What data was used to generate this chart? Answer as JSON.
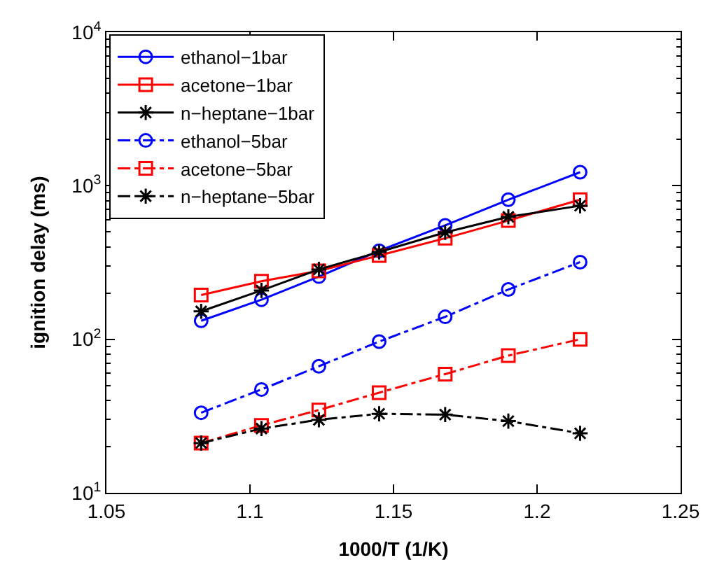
{
  "chart_data": {
    "type": "line",
    "xlabel": "1000/T (1/K)",
    "ylabel": "ignition delay (ms)",
    "x": [
      1.083,
      1.104,
      1.124,
      1.145,
      1.168,
      1.19,
      1.215
    ],
    "series": [
      {
        "name": "ethanol−1bar",
        "color": "#0000ff",
        "marker": "circle",
        "line_style": "solid",
        "values": [
          132,
          181,
          256,
          377,
          552,
          811,
          1225
        ]
      },
      {
        "name": "acetone−1bar",
        "color": "#ff0000",
        "marker": "square",
        "line_style": "solid",
        "values": [
          194,
          239,
          279,
          351,
          455,
          593,
          811
        ]
      },
      {
        "name": "n−heptane−1bar",
        "color": "#000000",
        "marker": "cross",
        "line_style": "solid",
        "values": [
          152,
          208,
          285,
          370,
          497,
          627,
          741
        ]
      },
      {
        "name": "ethanol−5bar",
        "color": "#0000ff",
        "marker": "circle",
        "line_style": "dashdot",
        "values": [
          33.2,
          47.1,
          66.7,
          96.6,
          140,
          211,
          318
        ]
      },
      {
        "name": "acetone−5bar",
        "color": "#ff0000",
        "marker": "square",
        "line_style": "dashdot",
        "values": [
          21.1,
          27.5,
          34.6,
          44.9,
          59.3,
          78.3,
          100
        ]
      },
      {
        "name": "n−heptane−5bar",
        "color": "#000000",
        "marker": "cross",
        "line_style": "dashdot",
        "values": [
          21.1,
          26.2,
          29.9,
          32.7,
          32.3,
          29.3,
          24.4
        ]
      }
    ],
    "log": "y",
    "legend": "top left",
    "xlim": [
      1.05,
      1.25
    ],
    "xticks": [
      1.05,
      1.1,
      1.15,
      1.2,
      1.25
    ],
    "ylim": [
      10,
      10000
    ],
    "yticks": [
      {
        "value": 10,
        "label": "10$^{1}$"
      },
      {
        "value": 100,
        "label": "10$^{2}$"
      },
      {
        "value": 1000,
        "label": "10$^{3}$"
      },
      {
        "value": 10000,
        "label": "10$^{4}$"
      }
    ]
  }
}
